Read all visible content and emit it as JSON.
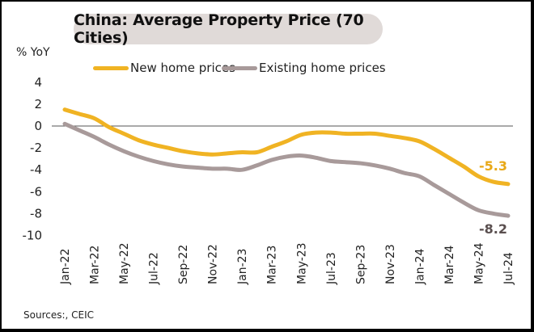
{
  "chart_data": {
    "type": "line",
    "title": "China: Average Property Price (70 Cities)",
    "ylabel": "% YoY",
    "xlabel": "",
    "ylim": [
      -10,
      4
    ],
    "yticks": [
      "4",
      "2",
      "0",
      "-2",
      "-4",
      "-6",
      "-8",
      "-10"
    ],
    "ytick_values": [
      4,
      2,
      0,
      -2,
      -4,
      -6,
      -8,
      -10
    ],
    "x": [
      "Jan-22",
      "Feb-22",
      "Mar-22",
      "Apr-22",
      "May-22",
      "Jun-22",
      "Jul-22",
      "Aug-22",
      "Sep-22",
      "Oct-22",
      "Nov-22",
      "Dec-22",
      "Jan-23",
      "Feb-23",
      "Mar-23",
      "Apr-23",
      "May-23",
      "Jun-23",
      "Jul-23",
      "Aug-23",
      "Sep-23",
      "Oct-23",
      "Nov-23",
      "Dec-23",
      "Jan-24",
      "Feb-24",
      "Mar-24",
      "Apr-24",
      "May-24",
      "Jun-24",
      "Jul-24"
    ],
    "xtick_labels": [
      "Jan-22",
      "Mar-22",
      "May-22",
      "Jul-22",
      "Sep-22",
      "Nov-22",
      "Jan-23",
      "Mar-23",
      "May-23",
      "Jul-23",
      "Sep-23",
      "Nov-23",
      "Jan-24",
      "Mar-24",
      "May-24",
      "Jul-24"
    ],
    "zero_line": true,
    "grid": false,
    "legend_position": "top",
    "series": [
      {
        "name": "New home prices",
        "color": "#f0b323",
        "values": [
          1.5,
          1.1,
          0.7,
          -0.1,
          -0.7,
          -1.3,
          -1.7,
          -2.0,
          -2.3,
          -2.5,
          -2.6,
          -2.5,
          -2.4,
          -2.4,
          -1.9,
          -1.4,
          -0.8,
          -0.6,
          -0.6,
          -0.7,
          -0.7,
          -0.7,
          -0.9,
          -1.1,
          -1.4,
          -2.1,
          -2.9,
          -3.7,
          -4.6,
          -5.1,
          -5.3
        ],
        "end_label": "-5.3"
      },
      {
        "name": "Existing home prices",
        "color": "#a89a9a",
        "values": [
          0.2,
          -0.4,
          -1.0,
          -1.7,
          -2.3,
          -2.8,
          -3.2,
          -3.5,
          -3.7,
          -3.8,
          -3.9,
          -3.9,
          -4.0,
          -3.6,
          -3.1,
          -2.8,
          -2.7,
          -2.9,
          -3.2,
          -3.3,
          -3.4,
          -3.6,
          -3.9,
          -4.3,
          -4.6,
          -5.4,
          -6.2,
          -7.0,
          -7.7,
          -8.0,
          -8.2
        ],
        "end_label": "-8.2",
        "end_label_color": "#5a4f4f"
      }
    ],
    "source": "Sources:, CEIC"
  }
}
